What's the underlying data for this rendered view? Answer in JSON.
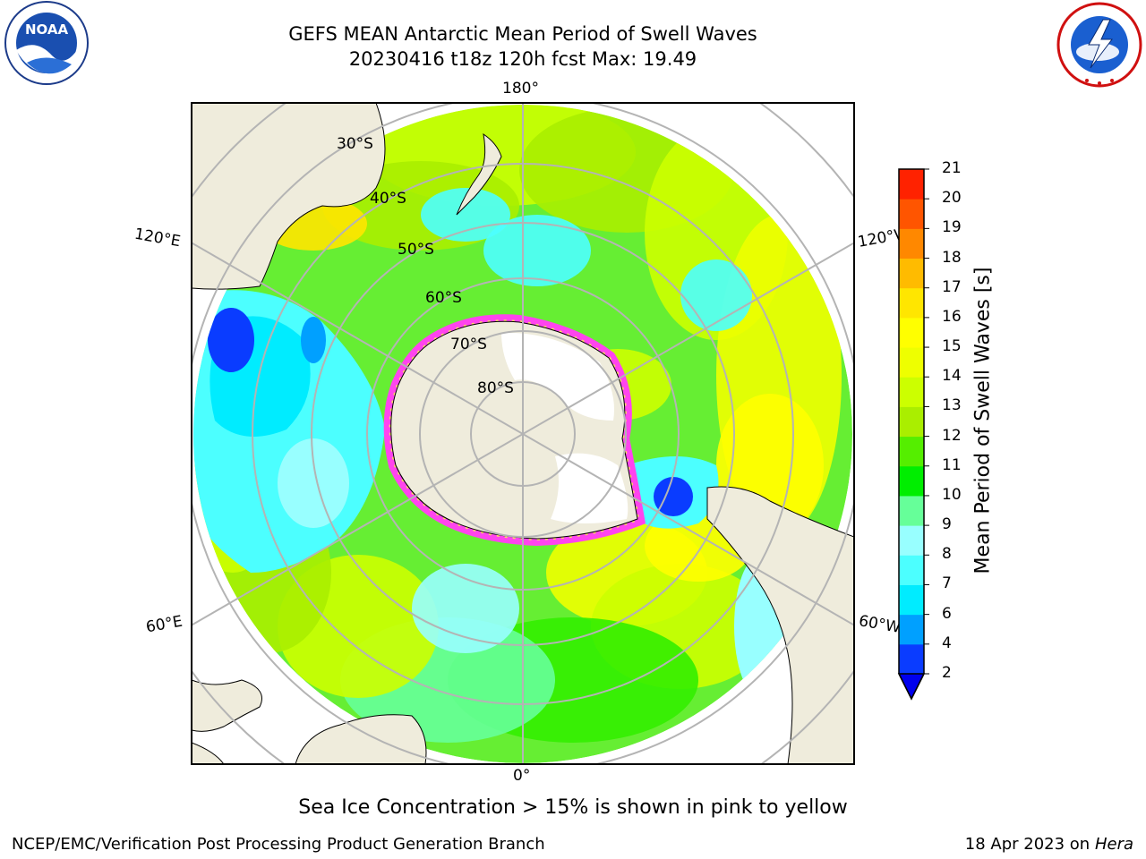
{
  "header": {
    "title_line1": "GEFS MEAN Antarctic Mean Period of Swell Waves",
    "title_line2": "20230416 t18z 120h fcst   Max: 19.49"
  },
  "logos": {
    "left": "noaa-logo",
    "left_text": "NOAA",
    "right": "nws-logo",
    "right_text": "NATIONAL WEATHER SERVICE"
  },
  "map": {
    "projection": "south-polar-stereographic",
    "lat_labels": [
      "30°S",
      "40°S",
      "50°S",
      "60°S",
      "70°S",
      "80°S"
    ],
    "lon_labels": {
      "top": "180°",
      "bottom": "0°",
      "upper_left": "120°E",
      "upper_right": "120°W",
      "lower_left": "60°E",
      "lower_right": "60°W"
    },
    "colors": {
      "land": "#efecdc",
      "ice_pink": "#ff44ee",
      "ice_yellow": "#ffd766",
      "grid": "#b4b4b4"
    }
  },
  "colorbar": {
    "label": "Mean Period of Swell Waves [s]",
    "ticks": [
      "2",
      "4",
      "6",
      "7",
      "8",
      "9",
      "10",
      "11",
      "12",
      "13",
      "14",
      "15",
      "16",
      "17",
      "18",
      "19",
      "20",
      "21"
    ],
    "colors": [
      "#0a3cff",
      "#00a0ff",
      "#00ecff",
      "#4cffff",
      "#98ffff",
      "#66ff99",
      "#00ee00",
      "#55ee00",
      "#aaee00",
      "#ccff00",
      "#eeff00",
      "#ffff00",
      "#ffe600",
      "#ffbb00",
      "#ff8800",
      "#ff5500",
      "#ff2200"
    ],
    "extend": "min"
  },
  "footer": {
    "note": "Sea Ice Concentration > 15% is shown in pink to yellow",
    "credit": "NCEP/EMC/Verification Post Processing Product Generation Branch",
    "date_prefix": "18 Apr 2023 on ",
    "machine": "Hera"
  }
}
